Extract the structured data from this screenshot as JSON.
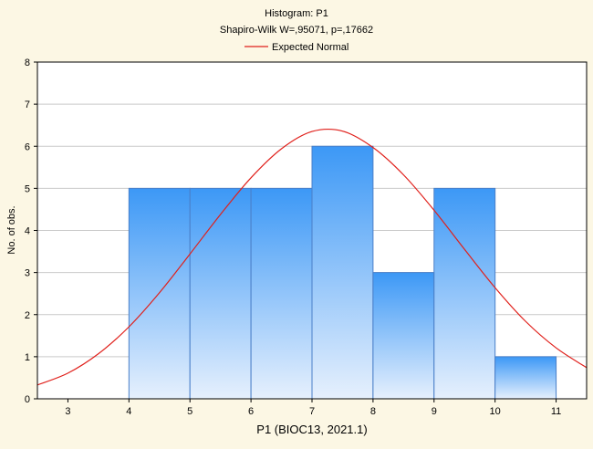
{
  "chart_data": {
    "type": "bar",
    "title": "Histogram: P1",
    "subtitle": "Shapiro-Wilk W=,95071, p=,17662",
    "legend": {
      "label": "Expected Normal",
      "color": "#e0201b",
      "placement": "top-center"
    },
    "xlabel": "P1 (BIOC13, 2021.1)",
    "ylabel": "No. of obs.",
    "xlim": [
      2.5,
      11.5
    ],
    "ylim": [
      0,
      8
    ],
    "x_ticks": [
      "3",
      "4",
      "5",
      "6",
      "7",
      "8",
      "9",
      "10",
      "11"
    ],
    "y_ticks": [
      "0",
      "1",
      "2",
      "3",
      "4",
      "5",
      "6",
      "7",
      "8"
    ],
    "grid": true,
    "bins": [
      {
        "from": 4,
        "to": 5,
        "count": 5
      },
      {
        "from": 5,
        "to": 6,
        "count": 5
      },
      {
        "from": 6,
        "to": 7,
        "count": 5
      },
      {
        "from": 7,
        "to": 8,
        "count": 6
      },
      {
        "from": 8,
        "to": 9,
        "count": 3
      },
      {
        "from": 9,
        "to": 10,
        "count": 5
      },
      {
        "from": 10,
        "to": 11,
        "count": 1
      }
    ],
    "expected_normal_curve": {
      "x": [
        2.5,
        3,
        3.5,
        4,
        4.5,
        5,
        5.5,
        6,
        6.5,
        7,
        7.5,
        8,
        8.5,
        9,
        9.5,
        10,
        10.5,
        11,
        11.5
      ],
      "y": [
        0.33,
        0.61,
        1.07,
        1.71,
        2.52,
        3.44,
        4.38,
        5.25,
        5.94,
        6.35,
        6.36,
        5.97,
        5.32,
        4.48,
        3.55,
        2.64,
        1.84,
        1.21,
        0.74
      ]
    },
    "colors": {
      "background": "#fcf7e4",
      "plot_area": "#ffffff",
      "bar_top": "#3c98f6",
      "bar_bottom": "#e6f0fd",
      "bar_stroke": "#4a7fc8",
      "grid": "#c9c9c9",
      "curve": "#e0201b"
    }
  }
}
